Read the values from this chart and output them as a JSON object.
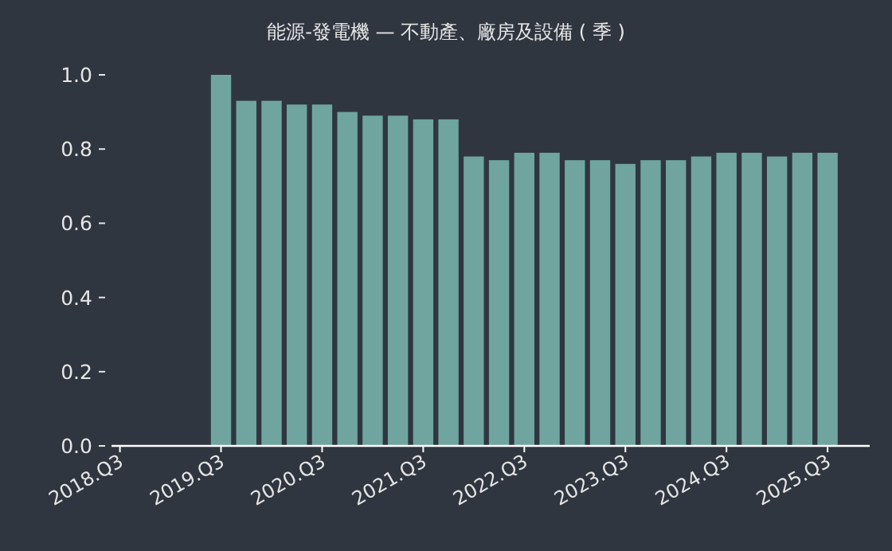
{
  "chart_data": {
    "type": "bar",
    "title": "能源-發電機 — 不動產、廠房及設備 ( 季 )",
    "x": [
      "2019-07",
      "2019-10",
      "2020-01",
      "2020-04",
      "2020-07",
      "2020-10",
      "2021-01",
      "2021-04",
      "2021-07",
      "2021-10",
      "2022-01",
      "2022-04",
      "2022-07",
      "2022-10",
      "2023-01",
      "2023-04",
      "2023-07",
      "2023-10",
      "2024-01",
      "2024-04",
      "2024-07",
      "2024-10",
      "2025-01",
      "2025-04",
      "2025-07"
    ],
    "series": [
      {
        "color": "#6fa59e",
        "values": [
          1.0,
          0.93,
          0.93,
          0.92,
          0.92,
          0.9,
          0.89,
          0.89,
          0.88,
          0.88,
          0.78,
          0.77,
          0.79,
          0.79,
          0.77,
          0.77,
          0.76,
          0.77,
          0.77,
          0.78,
          0.79,
          0.79,
          0.78,
          0.79,
          0.79
        ]
      }
    ],
    "xlim": [
      "2018-06",
      "2025-12"
    ],
    "xticks": [
      {
        "value": "2018-07",
        "label": "2018.Q3"
      },
      {
        "value": "2019-07",
        "label": "2019.Q3"
      },
      {
        "value": "2020-07",
        "label": "2020.Q3"
      },
      {
        "value": "2021-07",
        "label": "2021.Q3"
      },
      {
        "value": "2022-07",
        "label": "2022.Q3"
      },
      {
        "value": "2023-07",
        "label": "2023.Q3"
      },
      {
        "value": "2024-07",
        "label": "2024.Q3"
      },
      {
        "value": "2025-07",
        "label": "2025.Q3"
      }
    ],
    "ylim": [
      0,
      1
    ],
    "yticks": [
      {
        "value": 0,
        "label": "0.0"
      },
      {
        "value": 0.2,
        "label": "0.2"
      },
      {
        "value": 0.4,
        "label": "0.4"
      },
      {
        "value": 0.6,
        "label": "0.6"
      },
      {
        "value": 0.8,
        "label": "0.8"
      },
      {
        "value": 1,
        "label": "1.0"
      }
    ],
    "grid": false
  }
}
